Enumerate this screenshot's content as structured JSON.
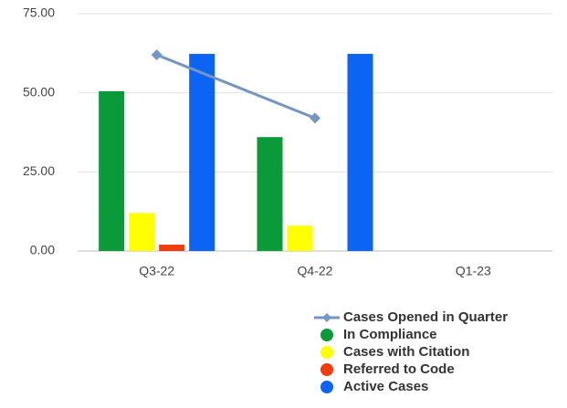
{
  "chart_data": {
    "type": "bar",
    "categories": [
      "Q3-22",
      "Q4-22",
      "Q1-23"
    ],
    "series": [
      {
        "name": "Cases Opened in Quarter",
        "type": "line",
        "color": "#7396c2",
        "values": [
          62,
          42,
          null
        ]
      },
      {
        "name": "In Compliance",
        "color": "#0a9a3a",
        "values": [
          50.5,
          36,
          null
        ]
      },
      {
        "name": "Cases with Citation",
        "color": "#ffff00",
        "values": [
          12,
          8,
          null
        ]
      },
      {
        "name": "Referred to Code",
        "color": "#f23c0c",
        "values": [
          2,
          0,
          null
        ]
      },
      {
        "name": "Active Cases",
        "color": "#0b64f4",
        "values": [
          62.3,
          62.3,
          null
        ]
      }
    ],
    "ylim": [
      0,
      75
    ],
    "yticks": [
      {
        "value": 0,
        "label": "0.00"
      },
      {
        "value": 25,
        "label": "25.00"
      },
      {
        "value": 50,
        "label": "50.00"
      },
      {
        "value": 75,
        "label": "75.00"
      }
    ],
    "grid": true,
    "legend": "bottom-right"
  }
}
